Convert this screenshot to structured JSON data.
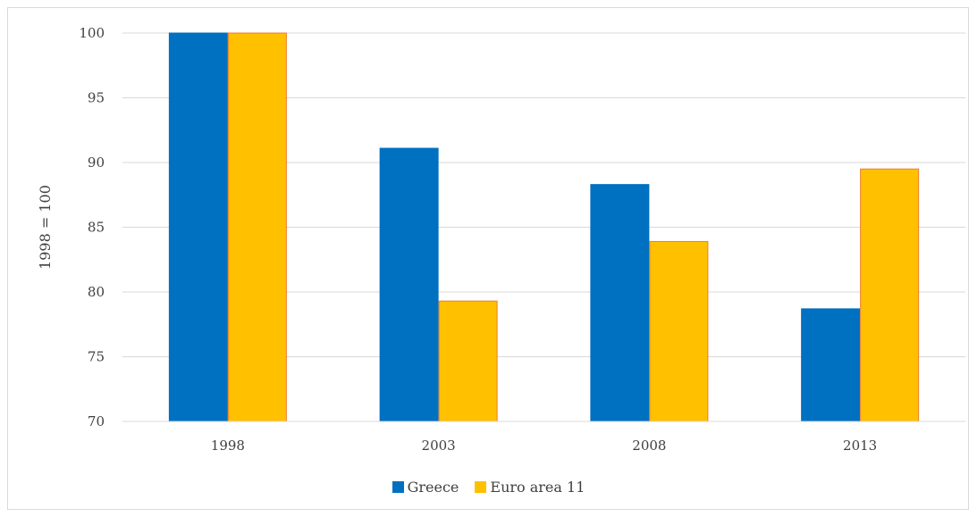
{
  "chart_data": {
    "type": "bar",
    "categories": [
      "1998",
      "2003",
      "2008",
      "2013"
    ],
    "series": [
      {
        "name": "Greece",
        "values": [
          100,
          91.1,
          88.3,
          78.7
        ],
        "color": "#0070C0",
        "stroke": "#0070C0"
      },
      {
        "name": "Euro area 11",
        "values": [
          100,
          79.3,
          83.9,
          89.5
        ],
        "color": "#FFC000",
        "stroke": "#ED7D31"
      }
    ],
    "title": "",
    "xlabel": "",
    "ylabel": "1998 = 100",
    "ylim": [
      70,
      100
    ],
    "yticks": [
      70,
      75,
      80,
      85,
      90,
      95,
      100
    ],
    "grid": true,
    "legend_position": "bottom"
  }
}
